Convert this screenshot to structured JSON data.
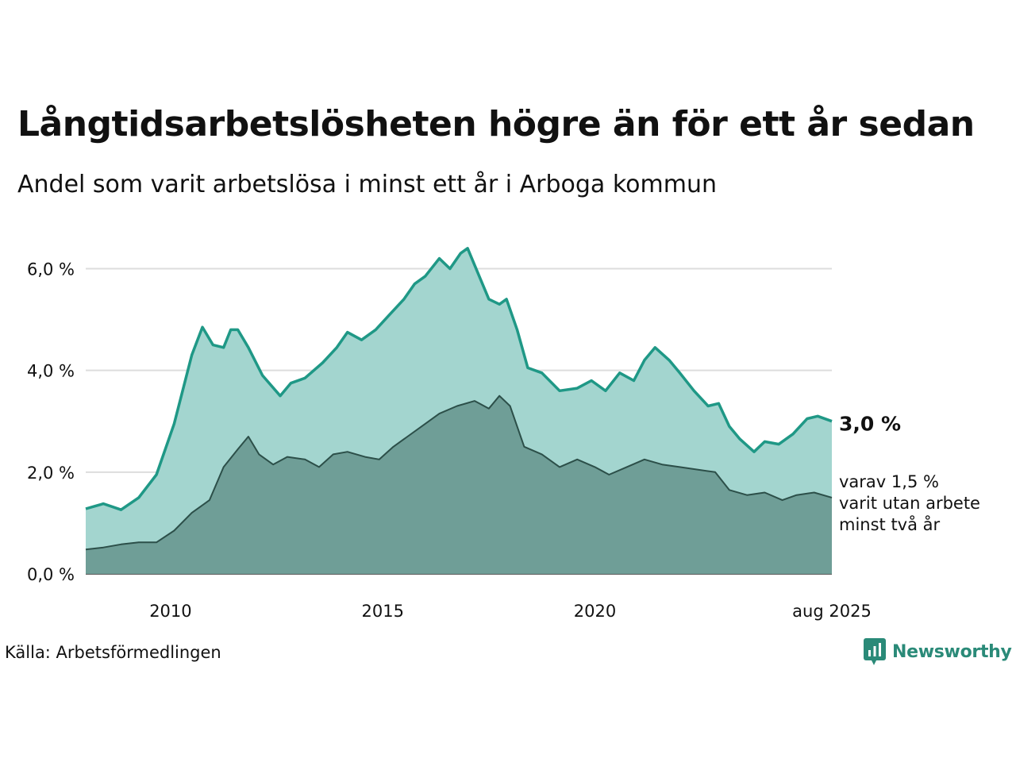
{
  "title": "Långtidsarbetslösheten högre än för ett år sedan",
  "subtitle": "Andel som varit arbetslösa i minst ett år i Arboga kommun",
  "source": "Källa: Arbetsförmedlingen",
  "logo_text": "Newsworthy",
  "colors": {
    "main_line": "#1f9886",
    "main_fill": "#a3d5cf",
    "sub_line": "#2c4f49",
    "sub_fill": "#6f9e97",
    "grid": "#dddddd",
    "logo": "#2a8a78"
  },
  "chart_data": {
    "type": "area",
    "title": "Långtidsarbetslösheten högre än för ett år sedan",
    "subtitle": "Andel som varit arbetslösa i minst ett år i Arboga kommun",
    "ylim": [
      0,
      6.6
    ],
    "yticks": [
      0,
      2,
      4,
      6
    ],
    "ytick_labels": [
      "0,0 %",
      "2,0 %",
      "4,0 %",
      "6,0 %"
    ],
    "xlim": [
      "2008-01",
      "2025-08"
    ],
    "xticks": [
      {
        "x": "2010-01",
        "label": "2010"
      },
      {
        "x": "2015-01",
        "label": "2015"
      },
      {
        "x": "2020-01",
        "label": "2020"
      },
      {
        "x": "2025-08",
        "label": "aug 2025"
      }
    ],
    "grid": true,
    "series": [
      {
        "name": "Minst ett år",
        "end_label": "3,0 %",
        "points": [
          [
            "2008-01",
            1.28
          ],
          [
            "2008-06",
            1.38
          ],
          [
            "2008-11",
            1.26
          ],
          [
            "2009-04",
            1.5
          ],
          [
            "2009-09",
            1.95
          ],
          [
            "2010-02",
            2.95
          ],
          [
            "2010-07",
            4.3
          ],
          [
            "2010-10",
            4.85
          ],
          [
            "2011-01",
            4.5
          ],
          [
            "2011-04",
            4.45
          ],
          [
            "2011-06",
            4.8
          ],
          [
            "2011-08",
            4.8
          ],
          [
            "2011-11",
            4.45
          ],
          [
            "2012-03",
            3.9
          ],
          [
            "2012-08",
            3.5
          ],
          [
            "2012-11",
            3.75
          ],
          [
            "2013-03",
            3.85
          ],
          [
            "2013-08",
            4.15
          ],
          [
            "2013-12",
            4.45
          ],
          [
            "2014-03",
            4.75
          ],
          [
            "2014-07",
            4.6
          ],
          [
            "2014-11",
            4.8
          ],
          [
            "2015-03",
            5.1
          ],
          [
            "2015-07",
            5.4
          ],
          [
            "2015-10",
            5.7
          ],
          [
            "2016-01",
            5.85
          ],
          [
            "2016-05",
            6.2
          ],
          [
            "2016-08",
            6.0
          ],
          [
            "2016-11",
            6.3
          ],
          [
            "2017-01",
            6.4
          ],
          [
            "2017-04",
            5.9
          ],
          [
            "2017-07",
            5.4
          ],
          [
            "2017-10",
            5.3
          ],
          [
            "2017-12",
            5.4
          ],
          [
            "2018-03",
            4.8
          ],
          [
            "2018-06",
            4.05
          ],
          [
            "2018-10",
            3.95
          ],
          [
            "2019-03",
            3.6
          ],
          [
            "2019-08",
            3.65
          ],
          [
            "2019-12",
            3.8
          ],
          [
            "2020-04",
            3.6
          ],
          [
            "2020-08",
            3.95
          ],
          [
            "2020-12",
            3.8
          ],
          [
            "2021-03",
            4.2
          ],
          [
            "2021-06",
            4.45
          ],
          [
            "2021-10",
            4.2
          ],
          [
            "2022-01",
            3.95
          ],
          [
            "2022-05",
            3.6
          ],
          [
            "2022-09",
            3.3
          ],
          [
            "2022-12",
            3.35
          ],
          [
            "2023-03",
            2.9
          ],
          [
            "2023-06",
            2.65
          ],
          [
            "2023-10",
            2.4
          ],
          [
            "2024-01",
            2.6
          ],
          [
            "2024-05",
            2.55
          ],
          [
            "2024-09",
            2.75
          ],
          [
            "2025-01",
            3.05
          ],
          [
            "2025-04",
            3.1
          ],
          [
            "2025-08",
            3.0
          ]
        ]
      },
      {
        "name": "Minst två år",
        "end_label": [
          "varav 1,5 %",
          "varit utan arbete",
          "minst två år"
        ],
        "points": [
          [
            "2008-01",
            0.48
          ],
          [
            "2008-06",
            0.52
          ],
          [
            "2008-11",
            0.58
          ],
          [
            "2009-04",
            0.62
          ],
          [
            "2009-09",
            0.62
          ],
          [
            "2010-02",
            0.85
          ],
          [
            "2010-07",
            1.2
          ],
          [
            "2010-12",
            1.45
          ],
          [
            "2011-04",
            2.1
          ],
          [
            "2011-08",
            2.45
          ],
          [
            "2011-11",
            2.7
          ],
          [
            "2012-02",
            2.35
          ],
          [
            "2012-06",
            2.15
          ],
          [
            "2012-10",
            2.3
          ],
          [
            "2013-03",
            2.25
          ],
          [
            "2013-07",
            2.1
          ],
          [
            "2013-11",
            2.35
          ],
          [
            "2014-03",
            2.4
          ],
          [
            "2014-08",
            2.3
          ],
          [
            "2014-12",
            2.25
          ],
          [
            "2015-04",
            2.5
          ],
          [
            "2015-08",
            2.7
          ],
          [
            "2016-01",
            2.95
          ],
          [
            "2016-05",
            3.15
          ],
          [
            "2016-10",
            3.3
          ],
          [
            "2017-03",
            3.4
          ],
          [
            "2017-07",
            3.25
          ],
          [
            "2017-10",
            3.5
          ],
          [
            "2018-01",
            3.3
          ],
          [
            "2018-05",
            2.5
          ],
          [
            "2018-10",
            2.35
          ],
          [
            "2019-03",
            2.1
          ],
          [
            "2019-08",
            2.25
          ],
          [
            "2020-01",
            2.1
          ],
          [
            "2020-05",
            1.95
          ],
          [
            "2020-10",
            2.1
          ],
          [
            "2021-03",
            2.25
          ],
          [
            "2021-08",
            2.15
          ],
          [
            "2022-01",
            2.1
          ],
          [
            "2022-06",
            2.05
          ],
          [
            "2022-11",
            2.0
          ],
          [
            "2023-03",
            1.65
          ],
          [
            "2023-08",
            1.55
          ],
          [
            "2024-01",
            1.6
          ],
          [
            "2024-06",
            1.45
          ],
          [
            "2024-10",
            1.55
          ],
          [
            "2025-03",
            1.6
          ],
          [
            "2025-08",
            1.5
          ]
        ]
      }
    ]
  }
}
